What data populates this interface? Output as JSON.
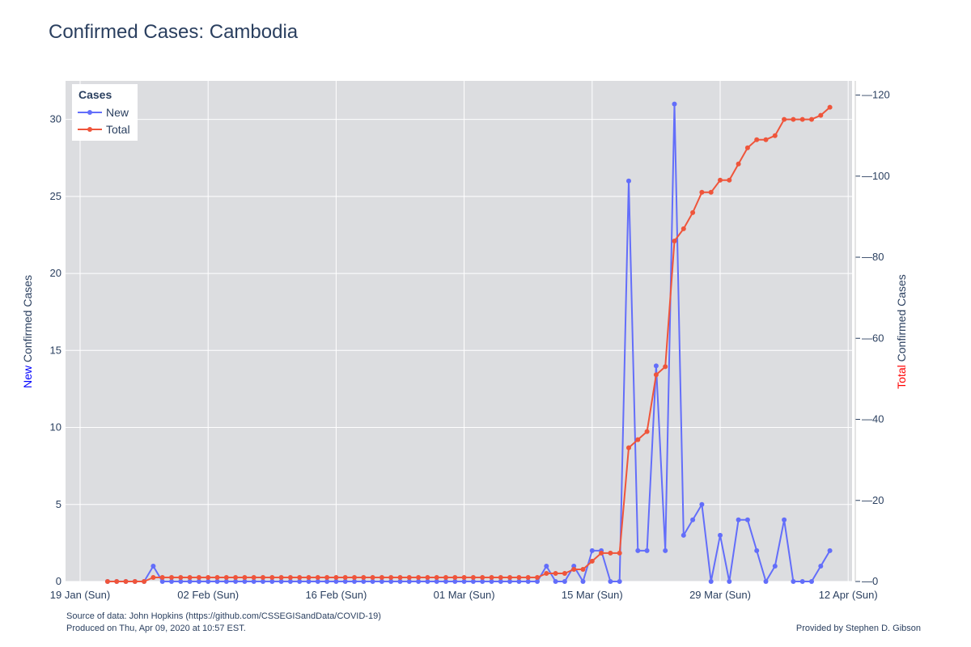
{
  "title": "Confirmed Cases: Cambodia",
  "footer": {
    "source": "Source of data: John Hopkins (https://github.com/CSSEGISandData/COVID-19)",
    "produced": "Produced on Thu, Apr 09, 2020 at 10:57 EST.",
    "credit": "Provided by Stephen D. Gibson"
  },
  "colors": {
    "new": "#636efa",
    "total": "#ef553b",
    "plot_bg": "#dcdde0",
    "grid": "#ffffff"
  },
  "chart_data": {
    "type": "line",
    "title": "Confirmed Cases: Cambodia",
    "legend": {
      "title": "Cases",
      "placement": "top-left"
    },
    "x_start_date": "2020-01-22",
    "x_ticks": [
      "19 Jan (Sun)",
      "02 Feb (Sun)",
      "16 Feb (Sun)",
      "01 Mar (Sun)",
      "15 Mar (Sun)",
      "29 Mar (Sun)",
      "12 Apr (Sun)"
    ],
    "y_left": {
      "label_prefix": "New",
      "label_suffix": " Confirmed Cases",
      "range": [
        0,
        32.5
      ],
      "ticks": [
        0,
        5,
        10,
        15,
        20,
        25,
        30
      ]
    },
    "y_right": {
      "label_prefix": "Total",
      "label_suffix": " Confirmed Cases",
      "range": [
        0,
        123.5
      ],
      "ticks": [
        0,
        20,
        40,
        60,
        80,
        100,
        120
      ]
    },
    "grid": true,
    "series": [
      {
        "name": "New",
        "axis": "left",
        "values": [
          0,
          0,
          0,
          0,
          0,
          1,
          0,
          0,
          0,
          0,
          0,
          0,
          0,
          0,
          0,
          0,
          0,
          0,
          0,
          0,
          0,
          0,
          0,
          0,
          0,
          0,
          0,
          0,
          0,
          0,
          0,
          0,
          0,
          0,
          0,
          0,
          0,
          0,
          0,
          0,
          0,
          0,
          0,
          0,
          0,
          0,
          0,
          0,
          1,
          0,
          0,
          1,
          0,
          2,
          2,
          0,
          0,
          26,
          2,
          2,
          14,
          2,
          31,
          3,
          4,
          5,
          0,
          3,
          0,
          4,
          4,
          2,
          0,
          1,
          4,
          0,
          0,
          0,
          1,
          2
        ]
      },
      {
        "name": "Total",
        "axis": "right",
        "values": [
          0,
          0,
          0,
          0,
          0,
          1,
          1,
          1,
          1,
          1,
          1,
          1,
          1,
          1,
          1,
          1,
          1,
          1,
          1,
          1,
          1,
          1,
          1,
          1,
          1,
          1,
          1,
          1,
          1,
          1,
          1,
          1,
          1,
          1,
          1,
          1,
          1,
          1,
          1,
          1,
          1,
          1,
          1,
          1,
          1,
          1,
          1,
          1,
          2,
          2,
          2,
          3,
          3,
          5,
          7,
          7,
          7,
          33,
          35,
          37,
          51,
          53,
          84,
          87,
          91,
          96,
          96,
          99,
          99,
          103,
          107,
          109,
          109,
          110,
          114,
          114,
          114,
          114,
          115,
          117
        ]
      }
    ]
  }
}
